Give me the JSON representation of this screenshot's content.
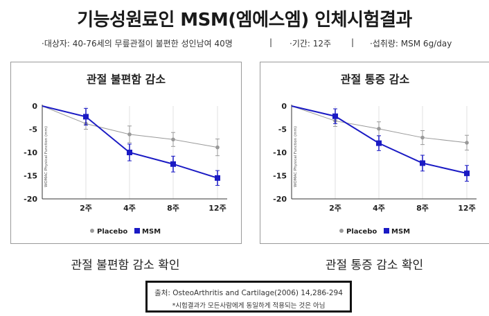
{
  "title": "기능성원료인 MSM(엠에스엠) 인체시험결과",
  "subtitle": {
    "subjects": "·대상자: 40-76세의 무릎관절이 불편한 성인남여 40명",
    "sep1": "|",
    "period": "·기간: 12주",
    "sep2": "|",
    "intake": "·섭취량: MSM 6g/day"
  },
  "colors": {
    "placebo": "#999999",
    "msm": "#1a1ac4",
    "axis": "#333333"
  },
  "chart_data": [
    {
      "type": "line",
      "title": "관절 불편함 감소",
      "ylabel": "WOMAC Physical Function (mm)",
      "categories": [
        "0",
        "2주",
        "4주",
        "8주",
        "12주"
      ],
      "x_tick_labels": [
        "2주",
        "4주",
        "8주",
        "12주"
      ],
      "y_ticks": [
        0,
        -5,
        -10,
        -15,
        -20
      ],
      "ylim": [
        -20,
        0
      ],
      "series": [
        {
          "name": "Placebo",
          "values": [
            0,
            -3.8,
            -6.1,
            -7.2,
            -8.9
          ],
          "error": [
            0,
            1.2,
            1.8,
            1.5,
            1.8
          ]
        },
        {
          "name": "MSM",
          "values": [
            0,
            -2.3,
            -10.0,
            -12.5,
            -15.5
          ],
          "error": [
            0,
            1.8,
            1.8,
            1.7,
            1.6
          ]
        }
      ],
      "legend_position": "bottom"
    },
    {
      "type": "line",
      "title": "관절 통증 감소",
      "ylabel": "WOMAC Physical Function (mm)",
      "categories": [
        "0",
        "2주",
        "4주",
        "8주",
        "12주"
      ],
      "x_tick_labels": [
        "2주",
        "4주",
        "8주",
        "12주"
      ],
      "y_ticks": [
        0,
        -5,
        -10,
        -15,
        -20
      ],
      "ylim": [
        -20,
        0
      ],
      "series": [
        {
          "name": "Placebo",
          "values": [
            0,
            -3.2,
            -4.9,
            -6.8,
            -7.9
          ],
          "error": [
            0,
            1.2,
            1.5,
            1.5,
            1.6
          ]
        },
        {
          "name": "MSM",
          "values": [
            0,
            -2.2,
            -8.0,
            -12.3,
            -14.5
          ],
          "error": [
            0,
            1.6,
            1.6,
            1.7,
            1.7
          ]
        }
      ],
      "legend_position": "bottom"
    }
  ],
  "captions": [
    "관절 불편함 감소 확인",
    "관절 통증 감소 확인"
  ],
  "source": {
    "line1": "출처: OsteoArthritis and Cartilage(2006) 14,286-294",
    "line2": "*시험결과가 모든사람에게 동일하게 적용되는 것은 아님"
  }
}
